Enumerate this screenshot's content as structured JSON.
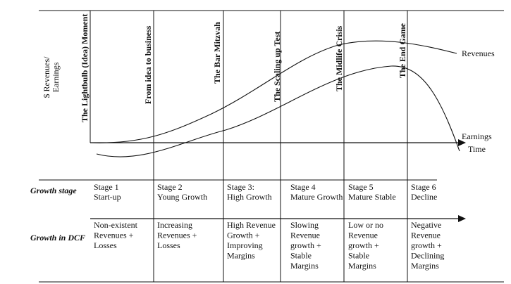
{
  "ylabel": [
    "$ Revenues/",
    "Earnings"
  ],
  "xlabel": "Time",
  "curve_labels": {
    "revenues": "Revenues",
    "earnings": "Earnings"
  },
  "phase_titles": [
    "The Lightbulb (Idea) Moment",
    "From idea to business",
    "The Bar Mitzvah",
    "The Scaling up Test",
    "The Midlife Crisis",
    "The End Game"
  ],
  "row_labels": {
    "growth_stage": "Growth stage",
    "growth_in_dcf": "Growth in DCF"
  },
  "stages": [
    {
      "stage": [
        "Stage 1",
        "Start-up"
      ],
      "dcf": [
        "Non-existent",
        "Revenues +",
        "Losses"
      ]
    },
    {
      "stage": [
        "Stage 2",
        "Young Growth"
      ],
      "dcf": [
        "Increasing",
        "Revenues +",
        "Losses"
      ]
    },
    {
      "stage": [
        "Stage 3:",
        "High Growth"
      ],
      "dcf": [
        "High Revenue",
        "Growth +",
        "Improving",
        "Margins"
      ]
    },
    {
      "stage": [
        "Stage 4",
        "Mature Growth"
      ],
      "dcf": [
        "Slowing",
        "Revenue",
        "growth +",
        "Stable",
        "Margins"
      ]
    },
    {
      "stage": [
        "Stage 5",
        "Mature Stable"
      ],
      "dcf": [
        "Low or no",
        "Revenue",
        "growth +",
        "Stable",
        "Margins"
      ]
    },
    {
      "stage": [
        "Stage 6",
        "Decline"
      ],
      "dcf": [
        "Negative",
        "Revenue",
        "growth +",
        "Declining",
        "Margins"
      ]
    }
  ],
  "colors": {
    "ink": "#111111",
    "background": "#ffffff"
  }
}
